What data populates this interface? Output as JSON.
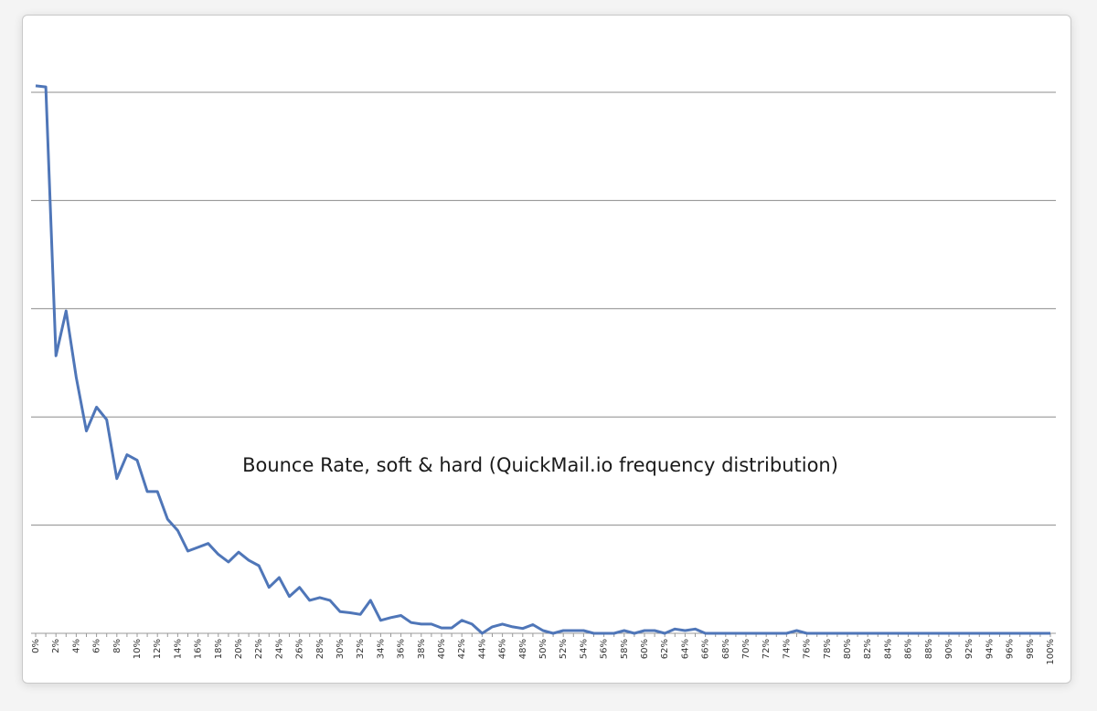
{
  "chart_data": {
    "type": "line",
    "title": "Bounce Rate, soft & hard (QuickMail.io frequency distribution)",
    "xlabel": "",
    "ylabel": "",
    "x_categories": [
      "0%",
      "1%",
      "2%",
      "3%",
      "4%",
      "5%",
      "6%",
      "7%",
      "8%",
      "9%",
      "10%",
      "11%",
      "12%",
      "13%",
      "14%",
      "15%",
      "16%",
      "17%",
      "18%",
      "19%",
      "20%",
      "21%",
      "22%",
      "23%",
      "24%",
      "25%",
      "26%",
      "27%",
      "28%",
      "29%",
      "30%",
      "31%",
      "32%",
      "33%",
      "34%",
      "35%",
      "36%",
      "37%",
      "38%",
      "39%",
      "40%",
      "41%",
      "42%",
      "43%",
      "44%",
      "45%",
      "46%",
      "47%",
      "48%",
      "49%",
      "50%",
      "51%",
      "52%",
      "53%",
      "54%",
      "55%",
      "56%",
      "57%",
      "58%",
      "59%",
      "60%",
      "61%",
      "62%",
      "63%",
      "64%",
      "65%",
      "66%",
      "67%",
      "68%",
      "69%",
      "70%",
      "71%",
      "72%",
      "73%",
      "74%",
      "75%",
      "76%",
      "77%",
      "78%",
      "79%",
      "80%",
      "81%",
      "82%",
      "83%",
      "84%",
      "85%",
      "86%",
      "87%",
      "88%",
      "89%",
      "90%",
      "91%",
      "92%",
      "93%",
      "94%",
      "95%",
      "96%",
      "97%",
      "98%",
      "99%",
      "100%"
    ],
    "tick_labels_shown": [
      "0%",
      "2%",
      "4%",
      "6%",
      "8%",
      "10%",
      "12%",
      "14%",
      "16%",
      "18%",
      "20%",
      "22%",
      "24%",
      "26%",
      "28%",
      "30%",
      "32%",
      "34%",
      "36%",
      "38%",
      "40%",
      "42%",
      "44%",
      "46%",
      "48%",
      "50%",
      "52%",
      "54%",
      "56%",
      "58%",
      "60%",
      "62%",
      "64%",
      "66%",
      "68%",
      "70%",
      "72%",
      "74%",
      "76%",
      "78%",
      "80%",
      "82%",
      "84%",
      "86%",
      "88%",
      "90%",
      "92%",
      "94%",
      "96%",
      "98%",
      "100%"
    ],
    "ylim": [
      0,
      100
    ],
    "y_gridlines": [
      20,
      40,
      60,
      80,
      100
    ],
    "y_tick_labels_visible": false,
    "grid": "horizontal",
    "legend": "none",
    "series": [
      {
        "values": [
          101.2,
          101.0,
          51.3,
          59.6,
          47.3,
          37.4,
          41.8,
          39.5,
          28.6,
          33.0,
          32.0,
          26.2,
          26.2,
          21.1,
          19.0,
          15.2,
          15.9,
          16.6,
          14.6,
          13.2,
          15.0,
          13.5,
          12.5,
          8.5,
          10.3,
          6.8,
          8.5,
          6.1,
          6.6,
          6.1,
          4.0,
          3.8,
          3.5,
          6.1,
          2.4,
          2.9,
          3.3,
          2.0,
          1.7,
          1.7,
          1.0,
          1.0,
          2.4,
          1.7,
          0.0,
          1.2,
          1.7,
          1.2,
          0.9,
          1.6,
          0.5,
          0.0,
          0.5,
          0.5,
          0.5,
          0.0,
          0.0,
          0.0,
          0.5,
          0.0,
          0.5,
          0.5,
          0.0,
          0.8,
          0.5,
          0.8,
          0.0,
          0.0,
          0.0,
          0.0,
          0.0,
          0.0,
          0.0,
          0.0,
          0.0,
          0.5,
          0.0,
          0.0,
          0.0,
          0.0,
          0.0,
          0.0,
          0.0,
          0.0,
          0.0,
          0.0,
          0.0,
          0.0,
          0.0,
          0.0,
          0.0,
          0.0,
          0.0,
          0.0,
          0.0,
          0.0,
          0.0,
          0.0,
          0.0,
          0.0,
          0.0
        ]
      }
    ]
  },
  "colors": {
    "line": "#4f76b8",
    "grid": "#8c8c8c",
    "axis": "#999999"
  }
}
